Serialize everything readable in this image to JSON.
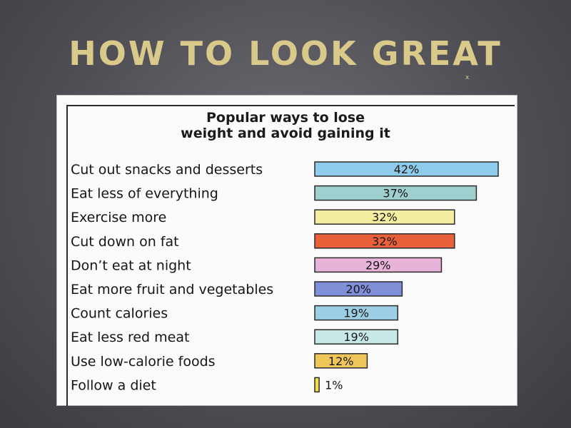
{
  "slide": {
    "title": "HOW TO LOOK GREAT",
    "mark": "x"
  },
  "chart_data": {
    "type": "bar",
    "orientation": "horizontal",
    "title_line1": "Popular ways to lose",
    "title_line2": "weight and avoid gaining it",
    "categories": [
      "Cut out snacks and desserts",
      "Eat less of everything",
      "Exercise more",
      "Cut down on fat",
      "Don’t eat at night",
      "Eat more fruit and vegetables",
      "Count calories",
      "Eat less red meat",
      "Use low-calorie foods",
      "Follow a diet"
    ],
    "values": [
      42,
      37,
      32,
      32,
      29,
      20,
      19,
      19,
      12,
      1
    ],
    "value_labels": [
      "42%",
      "37%",
      "32%",
      "32%",
      "29%",
      "20%",
      "19%",
      "19%",
      "12%",
      "1%"
    ],
    "colors": [
      "#8fcbea",
      "#9fcfcf",
      "#f4eea0",
      "#e9613a",
      "#e8b3d8",
      "#7f8fd8",
      "#9ccfe6",
      "#c8e7e7",
      "#f0c65a",
      "#f3df4a"
    ],
    "xlim": [
      0,
      42
    ]
  }
}
